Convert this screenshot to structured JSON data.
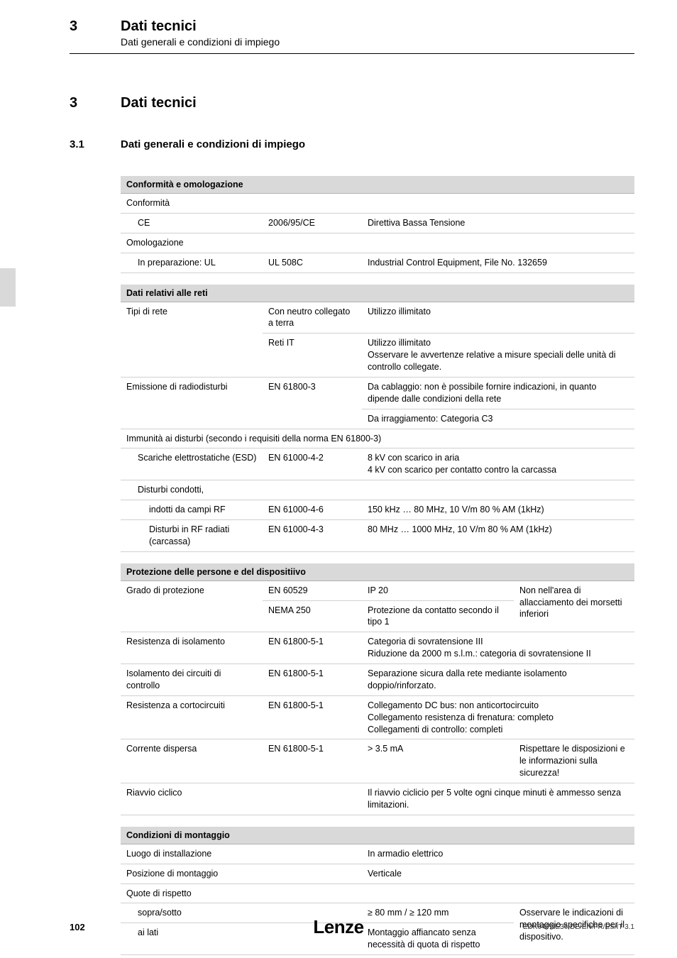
{
  "header": {
    "chapter_num": "3",
    "chapter_title": "Dati tecnici",
    "chapter_sub": "Dati generali e condizioni di impiego"
  },
  "section3": {
    "num": "3",
    "title": "Dati tecnici"
  },
  "section31": {
    "num": "3.1",
    "title": "Dati generali e condizioni di impiego"
  },
  "t1": {
    "header": "Conformità e omologazione",
    "r1c1": "Conformità",
    "r2c1": "CE",
    "r2c2": "2006/95/CE",
    "r2c3": "Direttiva Bassa Tensione",
    "r3c1": "Omologazione",
    "r4c1": "In preparazione: UL",
    "r4c2": "UL 508C",
    "r4c3": "Industrial Control Equipment, File No. 132659"
  },
  "t2": {
    "header": "Dati relativi alle reti",
    "r1c1": "Tipi di rete",
    "r1c2": "Con neutro collegato a terra",
    "r1c3": "Utilizzo illimitato",
    "r2c2": "Reti IT",
    "r2c3": "Utilizzo illimitato\nOsservare le avvertenze relative a misure speciali delle unità di controllo collegate.",
    "r3c1": "Emissione di radiodisturbi",
    "r3c2": "EN 61800-3",
    "r3c3": "Da cablaggio: non è possibile fornire indicazioni, in quanto dipende dalle condizioni della rete",
    "r4c3": "Da irraggiamento: Categoria C3",
    "r5": "Immunità ai disturbi (secondo i requisiti della norma EN 61800-3)",
    "r6c1": "Scariche elettrostatiche (ESD)",
    "r6c2": "EN 61000-4-2",
    "r6c3": "8 kV con scarico in aria\n4 kV con scarico per contatto contro la carcassa",
    "r7c1": "Disturbi condotti,",
    "r8c1": "indotti da campi RF",
    "r8c2": "EN 61000-4-6",
    "r8c3": "150 kHz … 80 MHz, 10 V/m 80 % AM (1kHz)",
    "r9c1": "Disturbi in RF radiati (carcassa)",
    "r9c2": "EN 61000-4-3",
    "r9c3": "80 MHz … 1000 MHz, 10 V/m 80 % AM (1kHz)"
  },
  "t3": {
    "header": "Protezione delle persone e del dispositiivo",
    "r1c1": "Grado di protezione",
    "r1c2": "EN 60529",
    "r1c3": "IP 20",
    "r1c4": "Non nell'area di allacciamento dei morsetti inferiori",
    "r2c2": "NEMA 250",
    "r2c3": "Protezione da contatto secondo il tipo 1",
    "r3c1": "Resistenza di isolamento",
    "r3c2": "EN 61800-5-1",
    "r3c3": "Categoria di sovratensione III\nRiduzione da 2000 m s.l.m.: categoria di sovratensione II",
    "r4c1": "Isolamento dei circuiti di controllo",
    "r4c2": "EN 61800-5-1",
    "r4c3": "Separazione sicura dalla rete mediante isolamento doppio/rinforzato.",
    "r5c1": "Resistenza a cortocircuiti",
    "r5c2": "EN 61800-5-1",
    "r5c3": "Collegamento DC bus: non anticortocircuito\nCollegamento resistenza di frenatura: completo\nCollegamenti di controllo: completi",
    "r6c1": "Corrente dispersa",
    "r6c2": "EN 61800-5-1",
    "r6c3": "> 3.5 mA",
    "r6c4": "Rispettare le disposizioni e le informazioni sulla sicurezza!",
    "r7c1": "Riavvio ciclico",
    "r7c3": "Il riavvio ciclicio per 5 volte ogni cinque minuti è ammesso senza limitazioni."
  },
  "t4": {
    "header": "Condizioni di montaggio",
    "r1c1": "Luogo di installazione",
    "r1c3": "In armadio elettrico",
    "r2c1": "Posizione di montaggio",
    "r2c3": "Verticale",
    "r3c1": "Quote di rispetto",
    "r4c1": "sopra/sotto",
    "r4c3": "≥ 80 mm / ≥ 120 mm",
    "r4c4": "Osservare le indicazioni di montaggio specifiche per il dispositivo.",
    "r5c1": "ai lati",
    "r5c3": "Montaggio affiancato senza necessità di quota di rispetto"
  },
  "footer": {
    "page": "102",
    "logo": "Lenze",
    "ref": "EDK94PNE36  DE/EN/FR/ES/IT 3.1"
  }
}
